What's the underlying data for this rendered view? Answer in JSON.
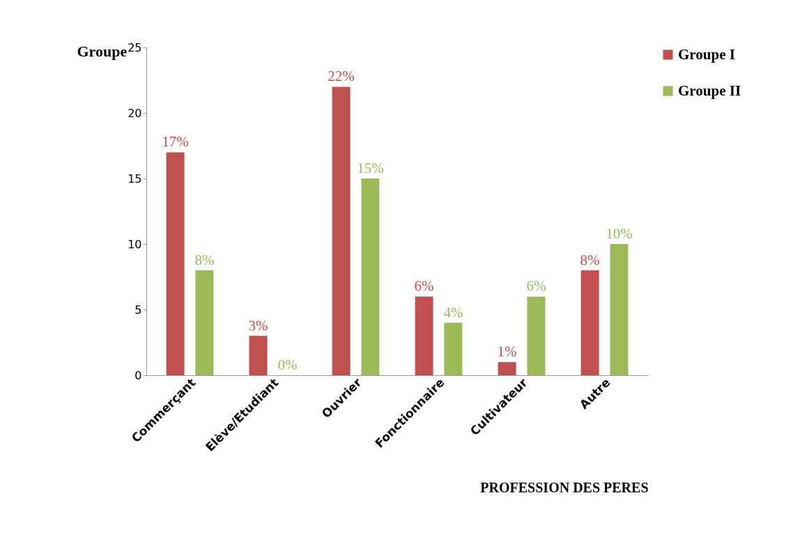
{
  "chart_data": {
    "type": "bar",
    "ylabel": "Groupe",
    "xlabel": "PROFESSION DES PERES",
    "categories": [
      "Commerçant",
      "Elève/Etudiant",
      "Ouvrier",
      "Fonctionnaire",
      "Cultivateur",
      "Autre"
    ],
    "series": [
      {
        "name": "Groupe I",
        "color": "#c0504d",
        "values": [
          17,
          3,
          22,
          6,
          1,
          8
        ],
        "value_labels": [
          "17%",
          "3%",
          "22%",
          "6%",
          "1%",
          "8%"
        ]
      },
      {
        "name": "Groupe II",
        "color": "#9bbb59",
        "values": [
          8,
          0,
          15,
          4,
          6,
          10
        ],
        "value_labels": [
          "8%",
          "0%",
          "15%",
          "4%",
          "6%",
          "10%"
        ]
      }
    ],
    "ylim": [
      0,
      25
    ],
    "yticks": [
      0,
      5,
      10,
      15,
      20,
      25
    ],
    "grid": false,
    "legend": "right"
  }
}
